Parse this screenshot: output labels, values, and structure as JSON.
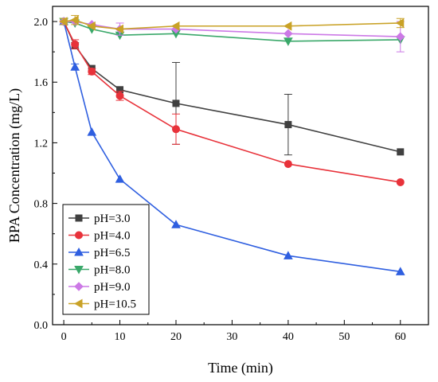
{
  "chart_data": {
    "type": "line",
    "xlabel": "Time (min)",
    "ylabel": "BPA Concentration (mg/L)",
    "xlim": [
      -2,
      65
    ],
    "ylim": [
      0,
      2.1
    ],
    "x_ticks": [
      0,
      10,
      20,
      30,
      40,
      50,
      60
    ],
    "y_ticks": [
      0.0,
      0.4,
      0.8,
      1.2,
      1.6,
      2.0
    ],
    "x_tick_labels": [
      "0",
      "10",
      "20",
      "30",
      "40",
      "50",
      "60"
    ],
    "y_tick_labels": [
      "0.0",
      "0.4",
      "0.8",
      "1.2",
      "1.6",
      "2.0"
    ],
    "legend_position": "bottom-left",
    "grid": false,
    "x": [
      0,
      2,
      5,
      10,
      20,
      40,
      60
    ],
    "series": [
      {
        "name": "pH=3.0",
        "color": "#404040",
        "marker": "square",
        "values": [
          2.0,
          1.84,
          1.69,
          1.55,
          1.46,
          1.32,
          1.14
        ],
        "errors": [
          0.01,
          0.02,
          0.01,
          0.01,
          0.27,
          0.2,
          0.01
        ]
      },
      {
        "name": "pH=4.0",
        "color": "#e8323a",
        "marker": "circle",
        "values": [
          2.0,
          1.85,
          1.67,
          1.51,
          1.29,
          1.06,
          0.94
        ],
        "errors": [
          0.01,
          0.03,
          0.02,
          0.03,
          0.1,
          0.01,
          0.01
        ]
      },
      {
        "name": "pH=6.5",
        "color": "#2f5fe0",
        "marker": "triangle-up",
        "values": [
          2.0,
          1.7,
          1.27,
          0.96,
          0.66,
          0.455,
          0.35
        ],
        "errors": [
          0.01,
          0.02,
          0.01,
          0.01,
          0.01,
          0.01,
          0.01
        ]
      },
      {
        "name": "pH=8.0",
        "color": "#3aa86a",
        "marker": "triangle-down",
        "values": [
          2.0,
          1.99,
          1.95,
          1.91,
          1.92,
          1.87,
          1.88
        ],
        "errors": [
          0.01,
          0.01,
          0.01,
          0.01,
          0.01,
          0.01,
          0.01
        ]
      },
      {
        "name": "pH=9.0",
        "color": "#cc79e6",
        "marker": "diamond",
        "values": [
          2.0,
          2.0,
          1.98,
          1.95,
          1.95,
          1.92,
          1.9
        ],
        "errors": [
          0.01,
          0.01,
          0.01,
          0.04,
          0.01,
          0.01,
          0.1
        ]
      },
      {
        "name": "pH=10.5",
        "color": "#c9a227",
        "marker": "triangle-left",
        "values": [
          2.0,
          2.01,
          1.97,
          1.95,
          1.97,
          1.97,
          1.99
        ],
        "errors": [
          0.02,
          0.03,
          0.01,
          0.01,
          0.01,
          0.01,
          0.03
        ]
      }
    ]
  }
}
